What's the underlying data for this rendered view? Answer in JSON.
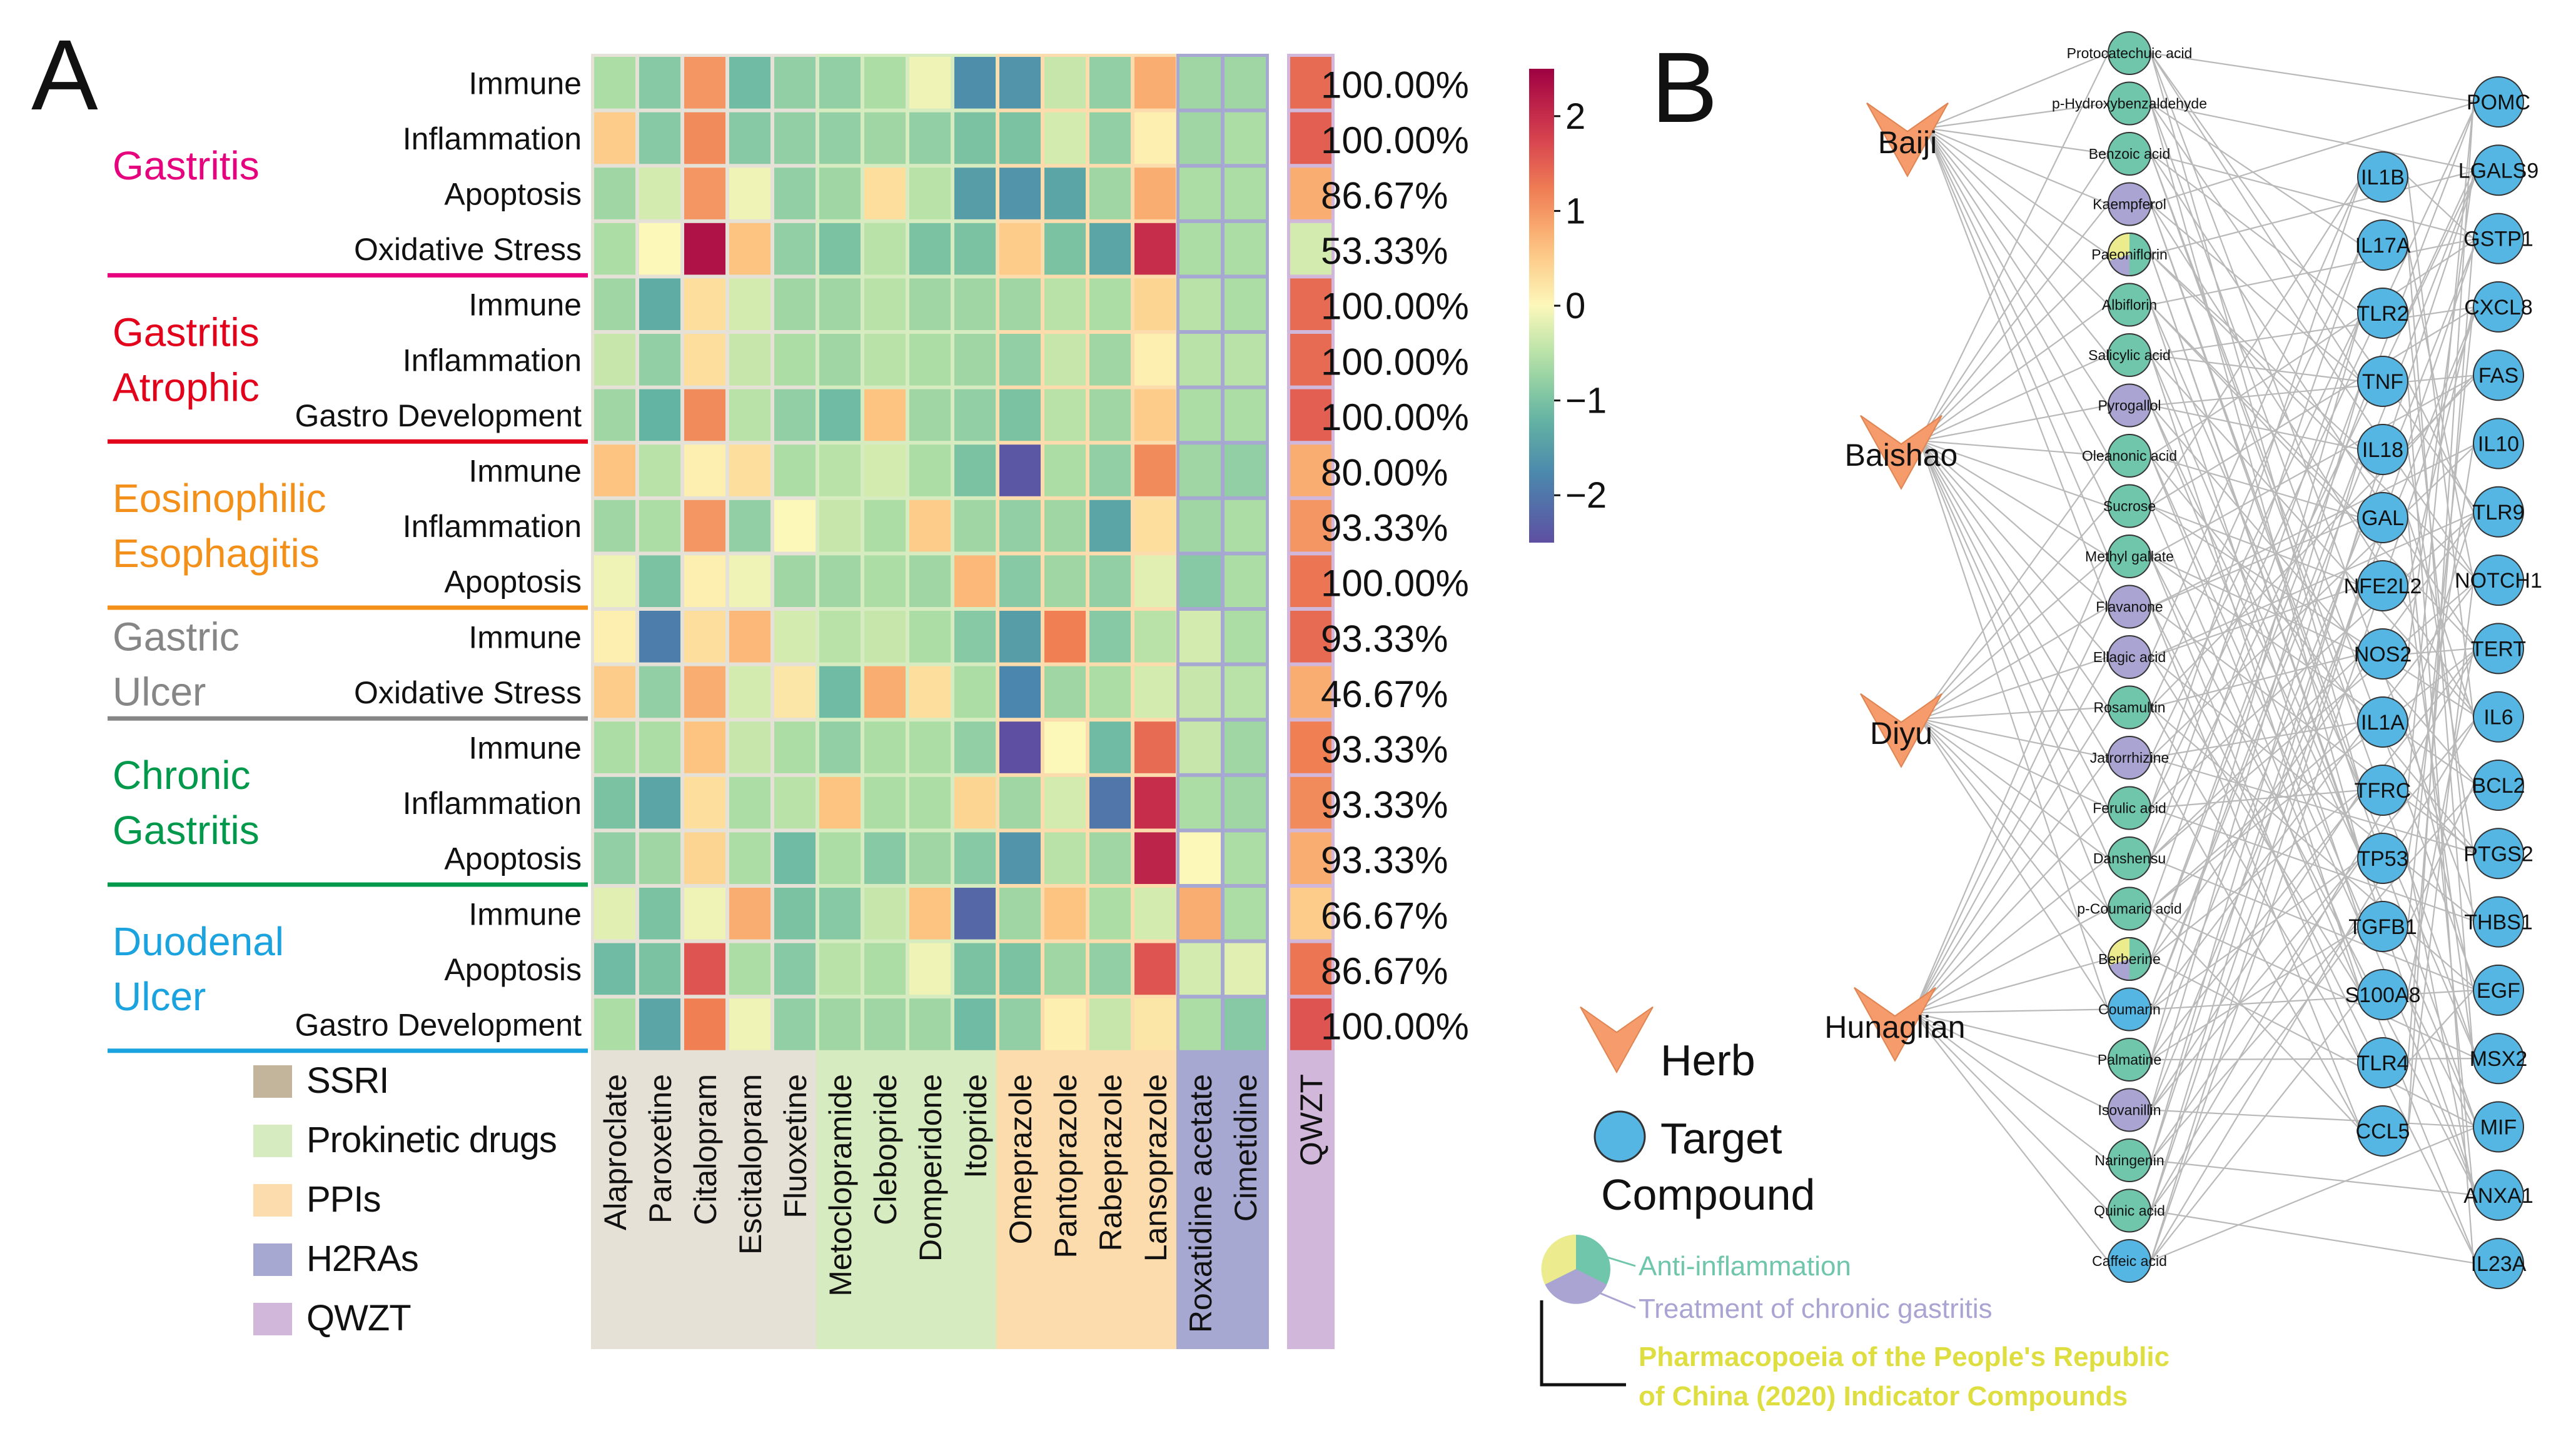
{
  "panelA": {
    "label": "A",
    "drugs": [
      "Alaproclate",
      "Paroxetine",
      "Citalopram",
      "Escitalopram",
      "Fluoxetine",
      "Metoclopramide",
      "Clebopride",
      "Domperidone",
      "Itopride",
      "Omeprazole",
      "Pantoprazole",
      "Rabeprazole",
      "Lansoprazole",
      "Roxatidine acetate",
      "Cimetidine",
      "QWZT"
    ],
    "drug_classes": [
      {
        "name": "SSRI",
        "color": "#e6e1d6",
        "start": 0,
        "end": 4
      },
      {
        "name": "Prokinetic drugs",
        "color": "#d6ebbf",
        "start": 5,
        "end": 8
      },
      {
        "name": "PPIs",
        "color": "#fcdcac",
        "start": 9,
        "end": 12
      },
      {
        "name": "H2RAs",
        "color": "#a6a8d2",
        "start": 13,
        "end": 14
      },
      {
        "name": "QWZT",
        "color": "#d1b8da",
        "start": 15,
        "end": 15
      }
    ],
    "legend": [
      {
        "label": "SSRI",
        "color": "#c2b59c"
      },
      {
        "label": "Prokinetic drugs",
        "color": "#d6ebbf"
      },
      {
        "label": "PPIs",
        "color": "#fcdcac"
      },
      {
        "label": "H2RAs",
        "color": "#a6a8d2"
      },
      {
        "label": "QWZT",
        "color": "#d1b8da"
      }
    ],
    "diseases": [
      {
        "name": [
          "Gastritis"
        ],
        "color": "#e6007e",
        "rows": [
          0,
          3
        ]
      },
      {
        "name": [
          "Gastritis",
          "Atrophic"
        ],
        "color": "#e3001b",
        "rows": [
          4,
          6
        ]
      },
      {
        "name": [
          "Eosinophilic",
          "Esophagitis"
        ],
        "color": "#f39019",
        "rows": [
          7,
          9
        ]
      },
      {
        "name": [
          "Gastric",
          "Ulcer"
        ],
        "color": "#868686",
        "rows": [
          10,
          11
        ]
      },
      {
        "name": [
          "Chronic",
          "Gastritis"
        ],
        "color": "#00994c",
        "rows": [
          12,
          14
        ]
      },
      {
        "name": [
          "Duodenal",
          "Ulcer"
        ],
        "color": "#1ba3e0",
        "rows": [
          15,
          17
        ]
      }
    ],
    "rows": [
      {
        "label": "Immune",
        "pct": "100.00%",
        "values": [
          -0.6,
          -0.9,
          1.0,
          -1.1,
          -0.8,
          -0.8,
          -0.6,
          -0.1,
          -1.7,
          -1.6,
          -0.4,
          -0.8,
          0.8,
          -0.7,
          -0.7,
          1.4
        ]
      },
      {
        "label": "Inflammation",
        "pct": "100.00%",
        "values": [
          0.5,
          -0.9,
          1.1,
          -0.9,
          -0.8,
          -0.8,
          -0.7,
          -0.8,
          -1.0,
          -1.0,
          -0.3,
          -0.8,
          0.1,
          -0.7,
          -0.6,
          1.5
        ]
      },
      {
        "label": "Apoptosis",
        "pct": "86.67%",
        "values": [
          -0.7,
          -0.3,
          1.0,
          -0.1,
          -0.8,
          -0.7,
          0.3,
          -0.5,
          -1.5,
          -1.6,
          -1.4,
          -0.7,
          0.8,
          -0.6,
          -0.6,
          0.8
        ]
      },
      {
        "label": "Oxidative Stress",
        "pct": "53.33%",
        "values": [
          -0.6,
          0.0,
          2.3,
          0.6,
          -0.8,
          -1.0,
          -0.5,
          -1.0,
          -1.0,
          0.5,
          -1.0,
          -1.4,
          2.0,
          -0.6,
          -0.6,
          -0.3
        ]
      },
      {
        "label": "Immune",
        "pct": "100.00%",
        "values": [
          -0.7,
          -1.3,
          0.3,
          -0.3,
          -0.7,
          -0.7,
          -0.5,
          -0.7,
          -0.7,
          -0.7,
          -0.5,
          -0.6,
          0.4,
          -0.5,
          -0.6,
          1.4
        ]
      },
      {
        "label": "Inflammation",
        "pct": "100.00%",
        "values": [
          -0.4,
          -0.8,
          0.3,
          -0.4,
          -0.6,
          -0.7,
          -0.5,
          -0.6,
          -0.7,
          -0.8,
          -0.4,
          -0.7,
          0.1,
          -0.5,
          -0.5,
          1.4
        ]
      },
      {
        "label": "Gastro Development",
        "pct": "100.00%",
        "values": [
          -0.7,
          -1.2,
          1.1,
          -0.5,
          -0.8,
          -1.1,
          0.6,
          -0.7,
          -0.8,
          -1.0,
          -0.5,
          -0.7,
          0.5,
          -0.6,
          -0.6,
          1.5
        ]
      },
      {
        "label": "Immune",
        "pct": "80.00%",
        "values": [
          0.6,
          -0.5,
          0.1,
          0.3,
          -0.6,
          -0.5,
          -0.3,
          -0.6,
          -1.0,
          -2.4,
          -0.6,
          -0.8,
          1.1,
          -0.7,
          -0.8,
          0.8
        ]
      },
      {
        "label": "Inflammation",
        "pct": "93.33%",
        "values": [
          -0.7,
          -0.6,
          1.0,
          -0.8,
          0.0,
          -0.4,
          -0.6,
          0.5,
          -0.7,
          -0.8,
          -0.7,
          -1.4,
          0.3,
          -0.7,
          -0.6,
          1.0
        ]
      },
      {
        "label": "Apoptosis",
        "pct": "100.00%",
        "values": [
          -0.1,
          -1.0,
          0.1,
          -0.1,
          -0.7,
          -0.7,
          -0.6,
          -0.7,
          0.7,
          -0.9,
          -0.7,
          -0.8,
          -0.2,
          -0.9,
          -0.6,
          1.3
        ]
      },
      {
        "label": "Immune",
        "pct": "93.33%",
        "values": [
          0.1,
          -1.9,
          0.3,
          0.7,
          -0.3,
          -0.5,
          -0.4,
          -0.6,
          -0.9,
          -1.5,
          1.2,
          -0.9,
          -0.5,
          -0.3,
          -0.6,
          1.4
        ]
      },
      {
        "label": "Oxidative Stress",
        "pct": "46.67%",
        "values": [
          0.5,
          -0.8,
          0.8,
          -0.3,
          0.2,
          -1.1,
          0.8,
          0.3,
          -0.6,
          -1.8,
          -0.7,
          -0.6,
          -0.3,
          -0.4,
          -0.5,
          0.8
        ]
      },
      {
        "label": "Immune",
        "pct": "93.33%",
        "values": [
          -0.6,
          -0.6,
          0.6,
          -0.4,
          -0.6,
          -0.8,
          -0.6,
          -0.6,
          -0.8,
          -2.5,
          0.0,
          -1.1,
          1.4,
          -0.4,
          -0.7,
          1.2
        ]
      },
      {
        "label": "Inflammation",
        "pct": "93.33%",
        "values": [
          -1.0,
          -1.4,
          0.3,
          -0.6,
          -0.5,
          0.6,
          -0.6,
          -0.6,
          0.4,
          -0.7,
          -0.3,
          -2.0,
          2.0,
          -0.6,
          -0.7,
          1.1
        ]
      },
      {
        "label": "Apoptosis",
        "pct": "93.33%",
        "values": [
          -0.8,
          -0.7,
          0.4,
          -0.6,
          -1.1,
          -0.6,
          -0.9,
          -0.7,
          -0.9,
          -1.6,
          -0.5,
          -0.7,
          2.1,
          0.0,
          -0.6,
          0.8
        ]
      },
      {
        "label": "Immune",
        "pct": "66.67%",
        "values": [
          -0.2,
          -1.0,
          -0.1,
          0.8,
          -1.0,
          -0.9,
          -0.4,
          0.6,
          -2.2,
          -0.7,
          0.6,
          -0.6,
          -0.3,
          0.8,
          -0.6,
          0.5
        ]
      },
      {
        "label": "Apoptosis",
        "pct": "86.67%",
        "values": [
          -1.1,
          -1.0,
          1.6,
          -0.6,
          -0.9,
          -0.5,
          -0.6,
          -0.1,
          -1.0,
          -1.0,
          -0.7,
          -0.8,
          1.6,
          -0.3,
          -0.2,
          1.3
        ]
      },
      {
        "label": "Gastro Development",
        "pct": "100.00%",
        "values": [
          -0.6,
          -1.4,
          1.2,
          -0.1,
          -0.8,
          -0.7,
          -0.7,
          -0.7,
          -1.1,
          -0.8,
          0.1,
          -0.4,
          0.2,
          -0.6,
          -0.9,
          1.6
        ]
      }
    ],
    "colorbar": {
      "ticks": [
        "2",
        "1",
        "0",
        "−1",
        "−2"
      ],
      "tick_values": [
        2,
        1,
        0,
        -1,
        -2
      ],
      "range": [
        -2.5,
        2.5
      ]
    }
  },
  "panelB": {
    "label": "B",
    "herbs": [
      "Baiji",
      "Baishao",
      "Diyu",
      "Hunaglian"
    ],
    "compounds": [
      {
        "name": "Protocatechuic acid",
        "type": "anti"
      },
      {
        "name": "p-Hydroxybenzaldehyde",
        "type": "anti"
      },
      {
        "name": "Benzoic acid",
        "type": "anti"
      },
      {
        "name": "Kaempferol",
        "type": "treat"
      },
      {
        "name": "Paeoniflorin",
        "type": "multi"
      },
      {
        "name": "Albiflorin",
        "type": "anti"
      },
      {
        "name": "Salicylic acid",
        "type": "anti"
      },
      {
        "name": "Pyrogallol",
        "type": "treat"
      },
      {
        "name": "Oleanonic acid",
        "type": "anti"
      },
      {
        "name": "Sucrose",
        "type": "anti"
      },
      {
        "name": "Methyl gallate",
        "type": "anti"
      },
      {
        "name": "Flavanone",
        "type": "treat"
      },
      {
        "name": "Ellagic acid",
        "type": "treat"
      },
      {
        "name": "Rosamultin",
        "type": "anti"
      },
      {
        "name": "Jatrorrhizine",
        "type": "treat"
      },
      {
        "name": "Ferulic acid",
        "type": "anti"
      },
      {
        "name": "Danshensu",
        "type": "anti"
      },
      {
        "name": "p-Coumaric acid",
        "type": "anti"
      },
      {
        "name": "Berberine",
        "type": "multi"
      },
      {
        "name": "Coumarin",
        "type": "target"
      },
      {
        "name": "Palmatine",
        "type": "anti"
      },
      {
        "name": "Isovanillin",
        "type": "treat"
      },
      {
        "name": "Naringenin",
        "type": "anti"
      },
      {
        "name": "Quinic acid",
        "type": "anti"
      },
      {
        "name": "Caffeic acid",
        "type": "target"
      }
    ],
    "targets_col1": [
      "IL1B",
      "IL17A",
      "TLR2",
      "TNF",
      "IL18",
      "GAL",
      "NFE2L2",
      "NOS2",
      "IL1A",
      "TFRC",
      "TP53",
      "TGFB1",
      "S100A8",
      "TLR4",
      "CCL5"
    ],
    "targets_col2": [
      "POMC",
      "LGALS9",
      "GSTP1",
      "CXCL8",
      "FAS",
      "IL10",
      "TLR9",
      "NOTCH1",
      "TERT",
      "IL6",
      "BCL2",
      "PTGS2",
      "THBS1",
      "EGF",
      "MSX2",
      "MIF",
      "ANXA1",
      "IL23A"
    ],
    "legend": {
      "herb": "Herb",
      "target_line1": "Target",
      "target_line2": "Compound",
      "pie_items": [
        {
          "label": "Anti-inflammation",
          "color": "#6fc6ab"
        },
        {
          "label": "Treatment of chronic gastritis",
          "color": "#a9a4d1"
        },
        {
          "label": "Pharmacopoeia of the People's Republic",
          "color": "#e6e84f"
        },
        {
          "label": "of China (2020) Indicator Compounds",
          "color": "#e6e84f"
        }
      ]
    }
  }
}
